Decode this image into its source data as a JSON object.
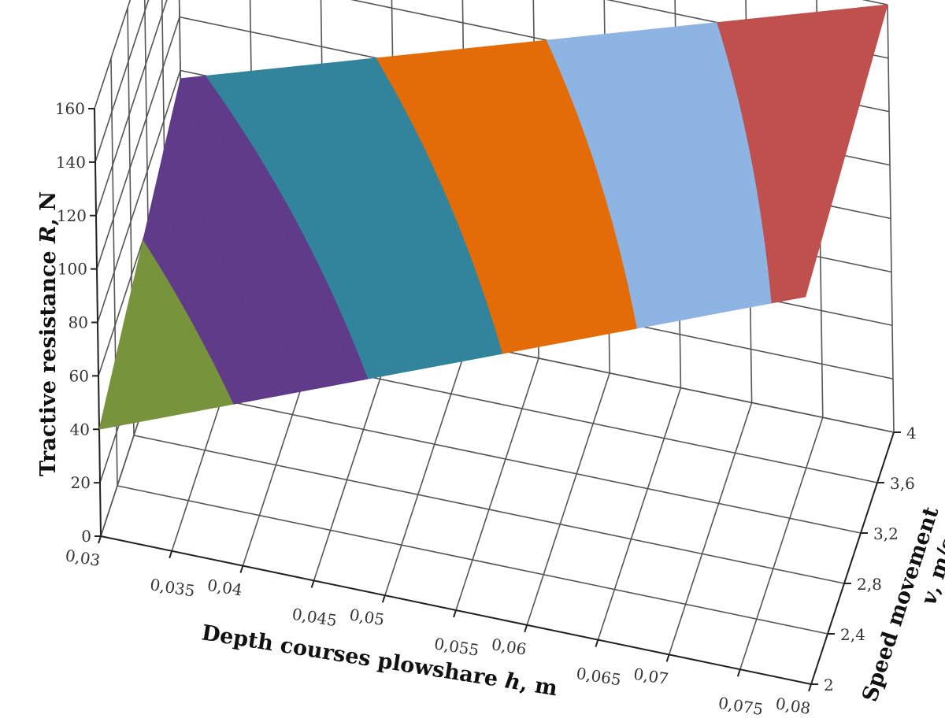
{
  "chart_data": {
    "type": "surface",
    "title": "",
    "xlabel": {
      "text": "Depth courses plowshare ",
      "var": "h",
      "unit": ", m"
    },
    "ylabel": {
      "text": "Speed movement",
      "var": "v",
      "unit": ", m/s"
    },
    "zlabel": {
      "text": "Tractive resistance ",
      "var": "R",
      "unit": ", N"
    },
    "x_ticks": [
      "0,03",
      "0,035",
      "0,04",
      "0,045",
      "0,05",
      "0,055",
      "0,06",
      "0,065",
      "0,07",
      "0,075",
      "0,08"
    ],
    "y_ticks": [
      "2",
      "2,4",
      "2,8",
      "3,2",
      "3,6",
      "4"
    ],
    "z_ticks": [
      "0",
      "20",
      "40",
      "60",
      "80",
      "100",
      "120",
      "140",
      "160"
    ],
    "x_range": [
      0.03,
      0.08
    ],
    "y_range": [
      2,
      4
    ],
    "z_range": [
      0,
      160
    ],
    "grid": true,
    "surface": {
      "x": [
        0.03,
        0.08
      ],
      "y": [
        2,
        4
      ],
      "z": [
        [
          40,
          145
        ],
        [
          77,
          160
        ]
      ]
    },
    "bands": [
      {
        "range": "40-60",
        "color": "#77933c"
      },
      {
        "range": "60-80",
        "color": "#5f3b8a"
      },
      {
        "range": "80-100",
        "color": "#31849b"
      },
      {
        "range": "100-120",
        "color": "#e36c09"
      },
      {
        "range": "120-140",
        "color": "#8eb4e3"
      },
      {
        "range": "140-160",
        "color": "#c0504d"
      }
    ]
  }
}
